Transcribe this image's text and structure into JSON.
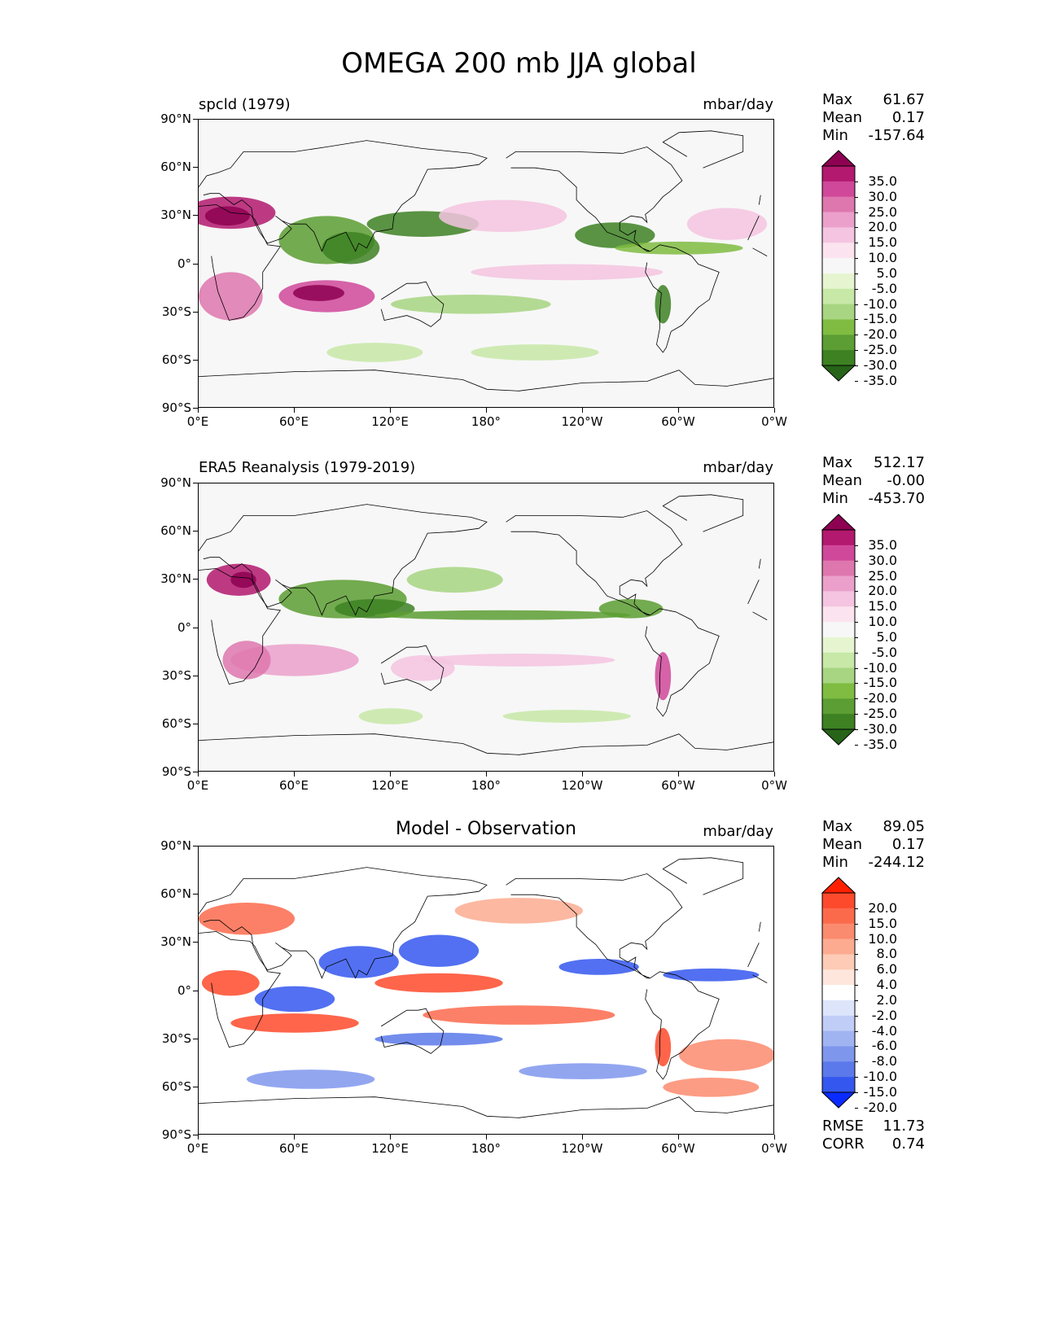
{
  "figure": {
    "title": "OMEGA 200 mb JJA global"
  },
  "chart_data": [
    {
      "type": "heatmap",
      "panel": "test",
      "title": "spcld (1979)",
      "units": "mbar/day",
      "stats": {
        "max": "61.67",
        "mean": "0.17",
        "min": "-157.64"
      },
      "stat_labels": {
        "max": "Max",
        "mean": "Mean",
        "min": "Min"
      },
      "colorbar": {
        "levels": [
          "35.0",
          "30.0",
          "25.0",
          "20.0",
          "15.0",
          "10.0",
          "5.0",
          "-5.0",
          "-10.0",
          "-15.0",
          "-20.0",
          "-25.0",
          "-30.0",
          "-35.0"
        ],
        "colors": [
          "#8e0152",
          "#b3196e",
          "#d0489a",
          "#de77ae",
          "#eba0cb",
          "#f4c4e0",
          "#fbe3ef",
          "#f7f7f7",
          "#e6f5d0",
          "#c7e8a6",
          "#a7d581",
          "#7fbc41",
          "#5c9e33",
          "#3d8123",
          "#276419"
        ]
      },
      "xlabels": [
        "0°E",
        "60°E",
        "120°E",
        "180°",
        "120°W",
        "60°W",
        "0°W"
      ],
      "ylabels": [
        "90°N",
        "60°N",
        "30°N",
        "0°",
        "30°S",
        "60°S",
        "90°S"
      ]
    },
    {
      "type": "heatmap",
      "panel": "reference",
      "title": "ERA5 Reanalysis (1979-2019)",
      "units": "mbar/day",
      "stats": {
        "max": "512.17",
        "mean": "-0.00",
        "min": "-453.70"
      },
      "stat_labels": {
        "max": "Max",
        "mean": "Mean",
        "min": "Min"
      },
      "colorbar": {
        "levels": [
          "35.0",
          "30.0",
          "25.0",
          "20.0",
          "15.0",
          "10.0",
          "5.0",
          "-5.0",
          "-10.0",
          "-15.0",
          "-20.0",
          "-25.0",
          "-30.0",
          "-35.0"
        ],
        "colors": [
          "#8e0152",
          "#b3196e",
          "#d0489a",
          "#de77ae",
          "#eba0cb",
          "#f4c4e0",
          "#fbe3ef",
          "#f7f7f7",
          "#e6f5d0",
          "#c7e8a6",
          "#a7d581",
          "#7fbc41",
          "#5c9e33",
          "#3d8123",
          "#276419"
        ]
      },
      "xlabels": [
        "0°E",
        "60°E",
        "120°E",
        "180°",
        "120°W",
        "60°W",
        "0°W"
      ],
      "ylabels": [
        "90°N",
        "60°N",
        "30°N",
        "0°",
        "30°S",
        "60°S",
        "90°S"
      ]
    },
    {
      "type": "heatmap",
      "panel": "difference",
      "title": "Model - Observation",
      "units": "mbar/day",
      "stats": {
        "max": "89.05",
        "mean": "0.17",
        "min": "-244.12"
      },
      "stat_labels": {
        "max": "Max",
        "mean": "Mean",
        "min": "Min"
      },
      "metrics": {
        "rmse_label": "RMSE",
        "rmse": "11.73",
        "corr_label": "CORR",
        "corr": "0.74"
      },
      "colorbar": {
        "levels": [
          "20.0",
          "15.0",
          "10.0",
          "8.0",
          "6.0",
          "4.0",
          "2.0",
          "-2.0",
          "-4.0",
          "-6.0",
          "-8.0",
          "-10.0",
          "-15.0",
          "-20.0"
        ],
        "colors": [
          "#ff2000",
          "#fe4a2c",
          "#fc6a4c",
          "#fb8b6e",
          "#fcab90",
          "#fdcbb6",
          "#fee6dc",
          "#ffffff",
          "#dde5fb",
          "#c0cdf7",
          "#a1b4f2",
          "#7f96ed",
          "#5b79ea",
          "#3457ef",
          "#0a2bff"
        ]
      },
      "xlabels": [
        "0°E",
        "60°E",
        "120°E",
        "180°",
        "120°W",
        "60°W",
        "0°W"
      ],
      "ylabels": [
        "90°N",
        "60°N",
        "30°N",
        "0°",
        "30°S",
        "60°S",
        "90°S"
      ]
    }
  ]
}
